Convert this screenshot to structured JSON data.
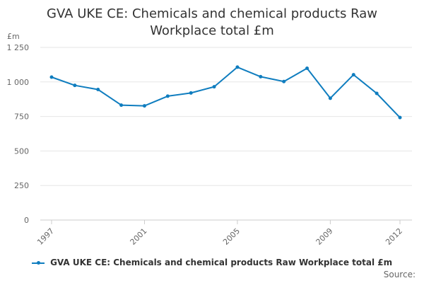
{
  "chart_data": {
    "type": "line",
    "title_line1": "GVA UKE CE: Chemicals and chemical products Raw",
    "title_line2": "Workplace total £m",
    "ylabel": "£m",
    "xlabel": "",
    "ylim": [
      0,
      1250
    ],
    "y_ticks": [
      "0",
      "250",
      "500",
      "750",
      "1 000",
      "1 250"
    ],
    "y_tick_values": [
      0,
      250,
      500,
      750,
      1000,
      1250
    ],
    "x_ticks": [
      "1997",
      "2001",
      "2005",
      "2009",
      "2012"
    ],
    "x_tick_values": [
      1997,
      2001,
      2005,
      2009,
      2012
    ],
    "xlim": [
      1997,
      2012
    ],
    "grid": true,
    "legend_position": "bottom",
    "series": [
      {
        "name": "GVA UKE CE: Chemicals and chemical products Raw Workplace total £m",
        "color": "#0f7dbf",
        "x": [
          1997,
          1998,
          1999,
          2000,
          2001,
          2002,
          2003,
          2004,
          2005,
          2006,
          2007,
          2008,
          2009,
          2010,
          2011,
          2012
        ],
        "values": [
          1035,
          975,
          945,
          832,
          827,
          897,
          920,
          965,
          1107,
          1038,
          1003,
          1099,
          882,
          1052,
          917,
          742
        ]
      }
    ]
  },
  "legend_label": "GVA UKE CE: Chemicals and chemical products Raw Workplace total £m",
  "source_label": "Source:"
}
